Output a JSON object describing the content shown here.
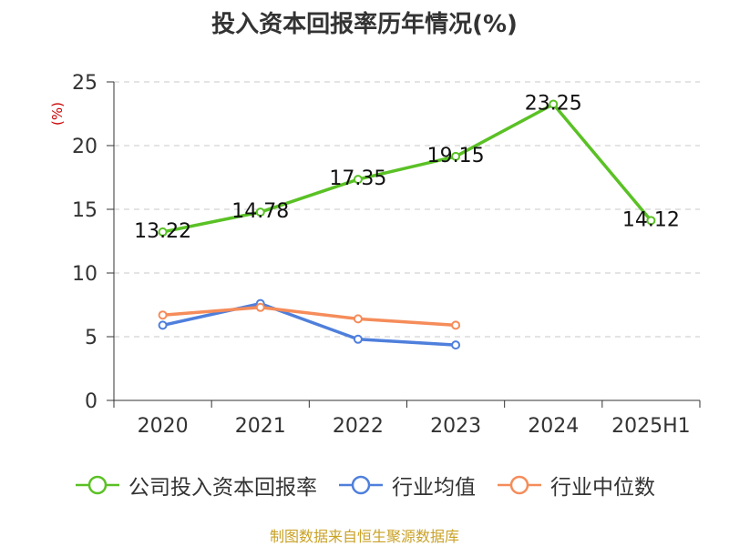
{
  "chart_data": {
    "type": "line",
    "title": "投入资本回报率历年情况(%)",
    "unit": "(%)",
    "categories": [
      "2020",
      "2021",
      "2022",
      "2023",
      "2024",
      "2025H1"
    ],
    "ylim": [
      0,
      25
    ],
    "yticks": [
      0,
      5,
      10,
      15,
      20,
      25
    ],
    "grid": true,
    "legend_position": "bottom",
    "series": [
      {
        "name": "公司投入资本回报率",
        "color": "#5ac125",
        "values": [
          13.22,
          14.78,
          17.35,
          19.15,
          23.25,
          14.12
        ],
        "labels": true
      },
      {
        "name": "行业均值",
        "color": "#4f7fdc",
        "values": [
          5.9,
          7.6,
          4.8,
          4.35,
          null,
          null
        ],
        "labels": false
      },
      {
        "name": "行业中位数",
        "color": "#f58c5a",
        "values": [
          6.7,
          7.3,
          6.4,
          5.9,
          null,
          null
        ],
        "labels": false
      }
    ]
  },
  "source": "制图数据来自恒生聚源数据库"
}
